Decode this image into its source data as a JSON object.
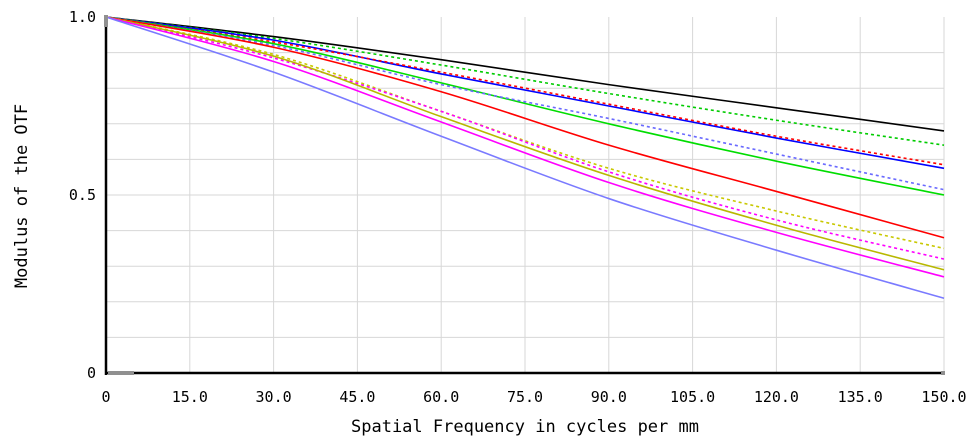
{
  "chart_data": {
    "type": "line",
    "title": "",
    "xlabel": "Spatial Frequency in cycles per mm",
    "ylabel": "Modulus of the OTF",
    "xlim": [
      0,
      150
    ],
    "ylim": [
      0,
      1
    ],
    "grid": true,
    "x_ticks": [
      0,
      15,
      30,
      45,
      60,
      75,
      90,
      105,
      120,
      135,
      150
    ],
    "x_tick_labels": [
      "0",
      "15.0",
      "30.0",
      "45.0",
      "60.0",
      "75.0",
      "90.0",
      "105.0",
      "120.0",
      "135.0",
      "150.0"
    ],
    "y_ticks": [
      0,
      0.5,
      1.0
    ],
    "y_tick_labels": [
      "0",
      "0.5",
      "1.0"
    ],
    "series": [
      {
        "color": "#000000",
        "style": "solid",
        "x": [
          0,
          30,
          60,
          90,
          120,
          150
        ],
        "y": [
          1.0,
          0.945,
          0.88,
          0.81,
          0.745,
          0.68
        ]
      },
      {
        "color": "#00cc00",
        "style": "dotted",
        "x": [
          0,
          30,
          60,
          90,
          120,
          150
        ],
        "y": [
          1.0,
          0.94,
          0.865,
          0.785,
          0.71,
          0.64
        ]
      },
      {
        "color": "#0000ff",
        "style": "solid",
        "x": [
          0,
          30,
          60,
          90,
          120,
          150
        ],
        "y": [
          1.0,
          0.935,
          0.84,
          0.75,
          0.66,
          0.575
        ]
      },
      {
        "color": "#ff0000",
        "style": "dotted",
        "x": [
          0,
          30,
          60,
          90,
          120,
          150
        ],
        "y": [
          1.0,
          0.93,
          0.845,
          0.755,
          0.665,
          0.585
        ]
      },
      {
        "color": "#00dd00",
        "style": "solid",
        "x": [
          0,
          30,
          60,
          90,
          120,
          150
        ],
        "y": [
          1.0,
          0.925,
          0.815,
          0.7,
          0.595,
          0.5
        ]
      },
      {
        "color": "#6a6aff",
        "style": "dotted",
        "x": [
          0,
          30,
          60,
          90,
          120,
          150
        ],
        "y": [
          1.0,
          0.92,
          0.81,
          0.715,
          0.615,
          0.515
        ]
      },
      {
        "color": "#ff0000",
        "style": "solid",
        "x": [
          0,
          30,
          60,
          90,
          120,
          150
        ],
        "y": [
          1.0,
          0.915,
          0.79,
          0.64,
          0.51,
          0.38
        ]
      },
      {
        "color": "#c8c800",
        "style": "dotted",
        "x": [
          0,
          30,
          60,
          90,
          120,
          150
        ],
        "y": [
          1.0,
          0.895,
          0.735,
          0.575,
          0.455,
          0.35
        ]
      },
      {
        "color": "#ff00ff",
        "style": "dotted",
        "x": [
          0,
          30,
          60,
          90,
          120,
          150
        ],
        "y": [
          1.0,
          0.885,
          0.735,
          0.565,
          0.43,
          0.32
        ]
      },
      {
        "color": "#b8b800",
        "style": "solid",
        "x": [
          0,
          30,
          60,
          90,
          120,
          150
        ],
        "y": [
          1.0,
          0.89,
          0.72,
          0.555,
          0.415,
          0.29
        ]
      },
      {
        "color": "#ff00ff",
        "style": "solid",
        "x": [
          0,
          30,
          60,
          90,
          120,
          150
        ],
        "y": [
          1.0,
          0.875,
          0.705,
          0.535,
          0.395,
          0.27
        ]
      },
      {
        "color": "#7a7aff",
        "style": "solid",
        "x": [
          0,
          30,
          60,
          90,
          120,
          150
        ],
        "y": [
          1.0,
          0.845,
          0.665,
          0.49,
          0.345,
          0.21
        ]
      }
    ]
  }
}
